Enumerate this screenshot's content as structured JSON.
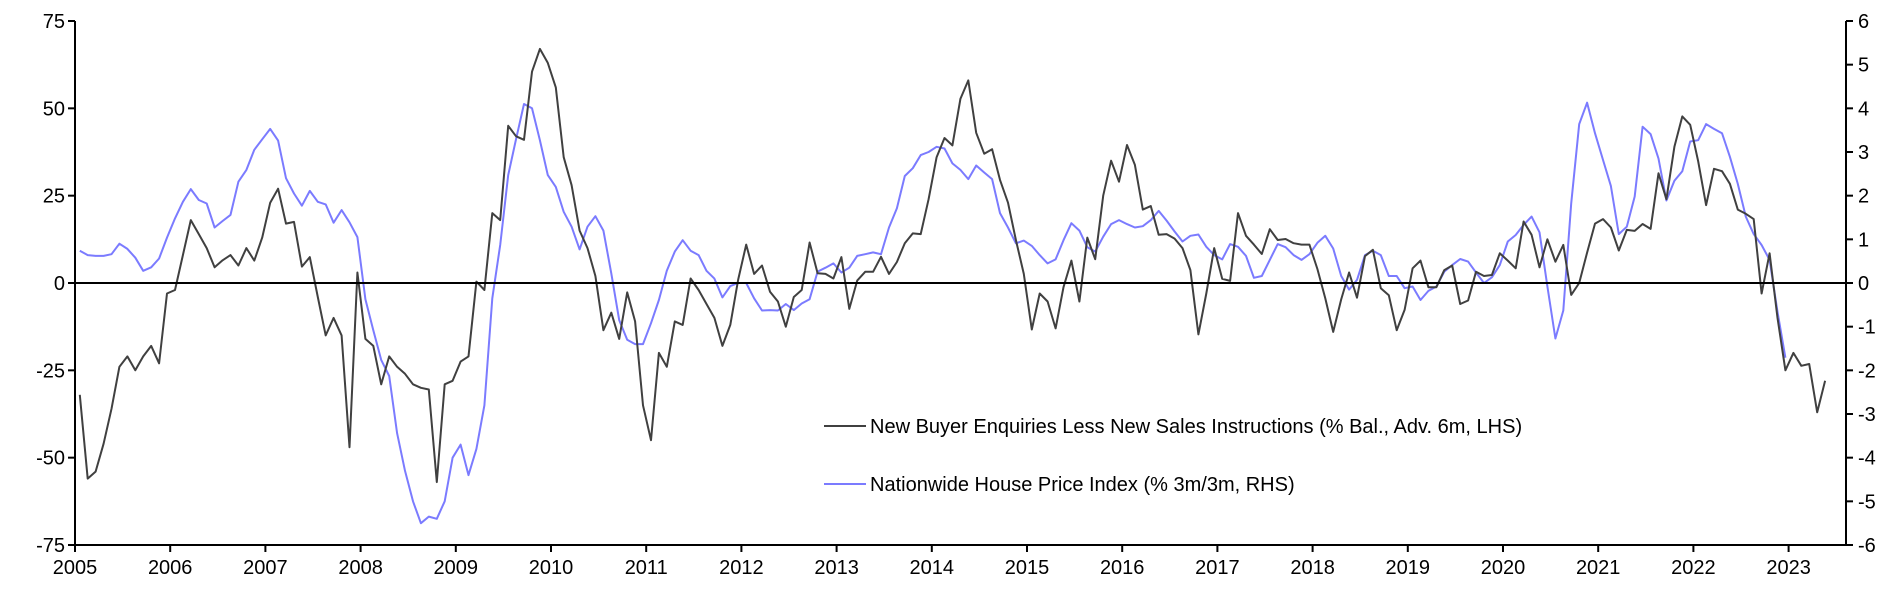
{
  "chart_data": {
    "type": "line",
    "title": "",
    "xlabel": "",
    "ylabel_left": "",
    "ylabel_right": "",
    "x_start": "2005-01",
    "frequency": "monthly",
    "x_ticks": [
      "2005",
      "2006",
      "2007",
      "2008",
      "2009",
      "2010",
      "2011",
      "2012",
      "2013",
      "2014",
      "2015",
      "2016",
      "2017",
      "2018",
      "2019",
      "2020",
      "2021",
      "2022",
      "2023"
    ],
    "y_left": {
      "range": [
        -75,
        75
      ],
      "ticks": [
        "75",
        "50",
        "25",
        "0",
        "-25",
        "-50",
        "-75"
      ]
    },
    "y_right": {
      "range": [
        -6,
        6
      ],
      "ticks": [
        "6",
        "5",
        "4",
        "3",
        "2",
        "1",
        "0",
        "-1",
        "-2",
        "-3",
        "-4",
        "-5",
        "-6"
      ]
    },
    "grid": false,
    "zero_line": true,
    "legend_position": "bottom-right",
    "series": [
      {
        "name": "New Buyer Enquiries Less New Sales Instructions (% Bal., Adv. 6m, LHS)",
        "axis": "left",
        "color": "#404040",
        "values": [
          -32,
          -56,
          -54,
          -46,
          -36,
          -24,
          -21,
          -25,
          -21,
          -18,
          -23,
          -3,
          -2,
          8,
          18,
          14,
          10,
          4.5,
          6.5,
          8,
          5,
          10,
          6.4,
          13,
          23,
          27,
          17,
          17.5,
          4.7,
          7.4,
          -4,
          -15,
          -10,
          -15,
          -47,
          3,
          -16,
          -18,
          -29,
          -21,
          -24,
          -26,
          -29,
          -30,
          -30.5,
          -57,
          -29,
          -28,
          -22.5,
          -21,
          0.4,
          -2,
          20,
          18,
          45,
          42,
          41,
          60.5,
          67,
          63,
          56,
          36,
          28,
          15,
          10,
          2,
          -13.5,
          -8.5,
          -16,
          -2.7,
          -11,
          -35,
          -45,
          -20,
          -24,
          -11,
          -12,
          1.3,
          -2,
          -6,
          -10,
          -18,
          -12,
          1,
          11,
          2.6,
          5,
          -2.5,
          -5.3,
          -12.5,
          -4,
          -2,
          11.6,
          2.8,
          2.6,
          1.3,
          7.4,
          -7.4,
          0.7,
          3.2,
          3.2,
          7.5,
          2.6,
          6,
          11.4,
          14.2,
          14,
          24,
          36,
          41.5,
          39.4,
          52.7,
          58,
          43,
          37,
          38.3,
          29.5,
          23,
          12.3,
          2.6,
          -13.3,
          -3,
          -5.3,
          -13,
          -1.2,
          6.4,
          -5.3,
          13,
          6.8,
          25,
          35,
          29,
          39.5,
          33.8,
          21,
          22,
          13.8,
          14,
          12.7,
          10,
          3.7,
          -14.7,
          -3,
          10,
          1.2,
          0.6,
          20,
          13.5,
          11,
          8.3,
          15.4,
          12.3,
          12.6,
          11.4,
          11,
          11,
          4,
          -4.4,
          -14,
          -4.7,
          3,
          -4.2,
          7.7,
          9.5,
          -1.5,
          -3.5,
          -13.5,
          -7.7,
          4.2,
          6.4,
          -1.2,
          -1.2,
          3.7,
          5,
          -6,
          -5,
          3.2,
          2,
          2.3,
          8.5,
          6.4,
          4.2,
          17.6,
          13.8,
          4.5,
          12.5,
          6.1,
          10.9,
          -3.4,
          0,
          8.7,
          17,
          18.3,
          15.9,
          9.3,
          15.2,
          14.9,
          16.9,
          15.5,
          31.4,
          24,
          39,
          47.7,
          45.3,
          34.8,
          22.3,
          32.7,
          32,
          28.4,
          21,
          19.8,
          18.3,
          -3,
          8.5,
          -10,
          -25,
          -20,
          -23.7,
          -23.2,
          -37,
          -28
        ]
      },
      {
        "name": "Nationwide House Price Index (% 3m/3m, RHS)",
        "axis": "right",
        "color": "#7b7bff",
        "values": [
          0.74,
          0.64,
          0.62,
          0.62,
          0.66,
          0.9,
          0.78,
          0.58,
          0.28,
          0.36,
          0.56,
          1.04,
          1.48,
          1.86,
          2.15,
          1.9,
          1.82,
          1.27,
          1.42,
          1.56,
          2.32,
          2.59,
          3.05,
          3.29,
          3.53,
          3.26,
          2.4,
          2.05,
          1.77,
          2.11,
          1.86,
          1.8,
          1.38,
          1.67,
          1.39,
          1.05,
          -0.37,
          -1.08,
          -1.76,
          -2.13,
          -3.44,
          -4.3,
          -5.0,
          -5.5,
          -5.35,
          -5.4,
          -5.0,
          -4.0,
          -3.7,
          -4.4,
          -3.8,
          -2.8,
          -0.35,
          0.87,
          2.47,
          3.3,
          4.1,
          4.0,
          3.27,
          2.47,
          2.2,
          1.63,
          1.29,
          0.77,
          1.29,
          1.53,
          1.2,
          0.22,
          -0.85,
          -1.3,
          -1.4,
          -1.4,
          -0.92,
          -0.39,
          0.28,
          0.72,
          0.98,
          0.74,
          0.64,
          0.28,
          0.1,
          -0.33,
          -0.07,
          0,
          0,
          -0.35,
          -0.63,
          -0.62,
          -0.63,
          -0.48,
          -0.62,
          -0.47,
          -0.37,
          0.26,
          0.35,
          0.45,
          0.24,
          0.35,
          0.62,
          0.66,
          0.7,
          0.66,
          1.27,
          1.71,
          2.45,
          2.63,
          2.93,
          3.0,
          3.12,
          3.08,
          2.74,
          2.59,
          2.38,
          2.69,
          2.53,
          2.38,
          1.6,
          1.27,
          0.91,
          0.97,
          0.85,
          0.64,
          0.45,
          0.54,
          0.98,
          1.37,
          1.2,
          0.82,
          0.72,
          1.06,
          1.35,
          1.44,
          1.35,
          1.27,
          1.3,
          1.44,
          1.65,
          1.43,
          1.18,
          0.95,
          1.08,
          1.11,
          0.83,
          0.64,
          0.54,
          0.89,
          0.83,
          0.62,
          0.12,
          0.16,
          0.53,
          0.89,
          0.82,
          0.64,
          0.53,
          0.66,
          0.92,
          1.08,
          0.79,
          0.16,
          -0.15,
          0.07,
          0.64,
          0.74,
          0.64,
          0.16,
          0.16,
          -0.12,
          -0.08,
          -0.39,
          -0.18,
          -0.08,
          0.26,
          0.41,
          0.55,
          0.49,
          0.24,
          0,
          0.13,
          0.41,
          0.95,
          1.1,
          1.33,
          1.52,
          1.16,
          -0.08,
          -1.27,
          -0.63,
          1.82,
          3.64,
          4.13,
          3.43,
          2.82,
          2.22,
          1.12,
          1.29,
          1.98,
          3.58,
          3.41,
          2.85,
          1.89,
          2.34,
          2.56,
          3.24,
          3.27,
          3.64,
          3.53,
          3.43,
          2.89,
          2.27,
          1.52,
          1.12,
          0.87,
          0.53,
          -0.66,
          -1.71
        ]
      }
    ]
  }
}
